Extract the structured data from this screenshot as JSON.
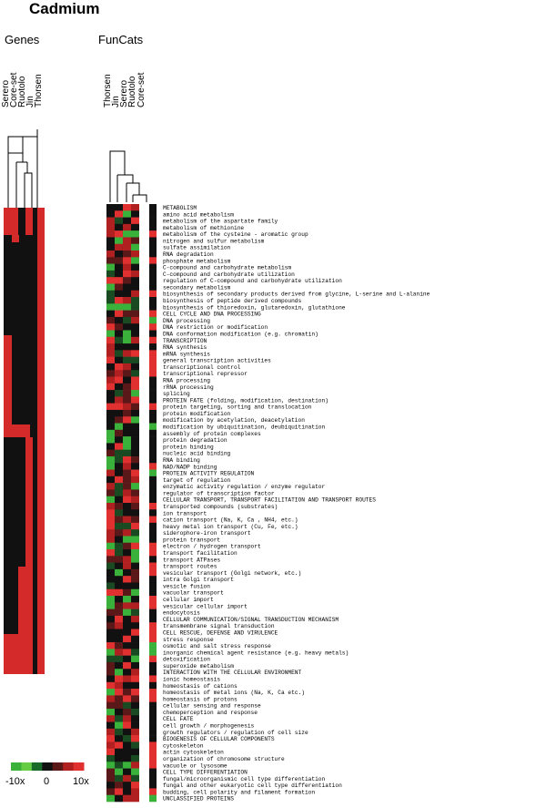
{
  "title": "Cadmium",
  "genes_panel": {
    "header": "Genes",
    "columns": [
      "Serero",
      "Core-set",
      "Ruotolo",
      "Jin",
      "Thorsen"
    ]
  },
  "funcats_panel": {
    "header": "FunCats",
    "columns": [
      "Thorsen",
      "Jin",
      "Serero",
      "Ruotolo",
      "Core-set"
    ]
  },
  "color_scale": {
    "min_label": "-10x",
    "mid_label": "0",
    "max_label": "10x",
    "colors": [
      "#3ab13a",
      "#66cc44",
      "#1a6a2a",
      "#111111",
      "#5a1818",
      "#b02020",
      "#e03030"
    ]
  },
  "categories": [
    "METABOLISM",
    "amino acid metabolism",
    "metabolism of the aspartate family",
    "metabolism of methionine",
    "metabolism of the cysteine - aromatic group",
    "nitrogen and sulfur metabolism",
    "sulfate assimilation",
    "RNA degradation",
    "phosphate metabolism",
    "C-compound and carbohydrate metabolism",
    "C-compound and carbohydrate utilization",
    "regulation of C-compound and carbohydrate utilization",
    "secondary metabolism",
    "biosynthesis of secondary products derived from glycine, L-serine and L-alanine",
    "biosynthesis of peptide derived compounds",
    "biosynthesis of thioredoxin, glutaredoxin, glutathione",
    "CELL CYCLE AND DNA PROCESSING",
    "DNA processing",
    "DNA restriction or modification",
    "DNA conformation modification (e.g. chromatin)",
    "TRANSCRIPTION",
    "RNA synthesis",
    "mRNA synthesis",
    "general transcription activities",
    "transcriptional control",
    "transcriptional repressor",
    "RNA processing",
    "rRNA processing",
    "splicing",
    "PROTEIN FATE (folding, modification, destination)",
    "protein targeting, sorting and translocation",
    "protein modification",
    "modification by acetylation, deacetylation",
    "modification by ubiquitination, deubiquitination",
    "assembly of protein complexes",
    "protein degradation",
    "protein binding",
    "nucleic acid binding",
    "RNA binding",
    "NAD/NADP binding",
    "PROTEIN ACTIVITY REGULATION",
    "target of regulation",
    "enzymatic activity regulation / enzyme regulator",
    "regulator of transcription factor",
    "CELLULAR TRANSPORT, TRANSPORT FACILITATION AND TRANSPORT ROUTES",
    "transported compounds (substrates)",
    "ion transport",
    "cation transport (Na, K, Ca , NH4, etc.)",
    "heavy metal ion transport (Cu, Fe, etc.)",
    "siderophore-iron transport",
    "protein transport",
    "electron / hydrogen transport",
    "transport facilitation",
    "transport ATPases",
    "transport routes",
    "vesicular transport (Golgi network, etc.)",
    "intra Golgi transport",
    "vesicle fusion",
    "vacuolar transport",
    "cellular import",
    "vesicular cellular import",
    "endocytosis",
    "CELLULAR COMMUNICATION/SIGNAL TRANSDUCTION MECHANISM",
    "transmembrane signal transduction",
    "CELL RESCUE, DEFENSE AND VIRULENCE",
    "stress response",
    "osmotic and salt stress response",
    "inorganic chemical agent resistance (e.g. heavy metals)",
    "detoxification",
    "superoxide metabolism",
    "INTERACTION WITH THE CELLULAR ENVIRONMENT",
    "ionic homeostasis",
    "homeostasis of cations",
    "homeostasis of metal ions (Na, K, Ca etc.)",
    "homeostasis of protons",
    "cellular sensing and response",
    "chemoperception and response",
    "CELL FATE",
    "cell growth / morphogenesis",
    "growth regulators / regulation of cell size",
    "BIOGENESIS OF CELLULAR COMPONENTS",
    "cytoskeleton",
    "actin cytoskeleton",
    "organization of chromosome structure",
    "vacuole or lysosome",
    "CELL TYPE DIFFERENTIATION",
    "fungal/microorganismic cell type differentiation",
    "fungal and other eukaryotic cell type differentiation",
    "budding, cell polarity and filament formation",
    "UNCLASSIFIED PROTEINS"
  ]
}
